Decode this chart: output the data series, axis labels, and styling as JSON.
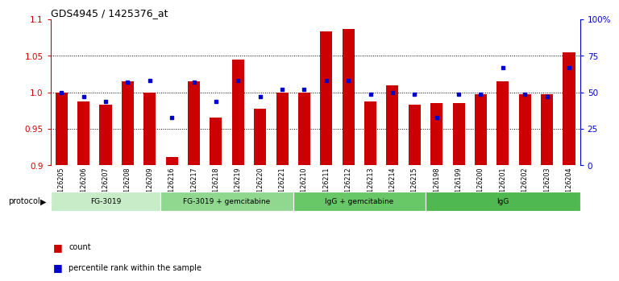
{
  "title": "GDS4945 / 1425376_at",
  "samples": [
    "GSM1126205",
    "GSM1126206",
    "GSM1126207",
    "GSM1126208",
    "GSM1126209",
    "GSM1126216",
    "GSM1126217",
    "GSM1126218",
    "GSM1126219",
    "GSM1126220",
    "GSM1126221",
    "GSM1126210",
    "GSM1126211",
    "GSM1126212",
    "GSM1126213",
    "GSM1126214",
    "GSM1126215",
    "GSM1126198",
    "GSM1126199",
    "GSM1126200",
    "GSM1126201",
    "GSM1126202",
    "GSM1126203",
    "GSM1126204"
  ],
  "red_values": [
    1.0,
    0.988,
    0.983,
    1.015,
    1.0,
    0.912,
    1.015,
    0.965,
    1.045,
    0.978,
    1.0,
    1.0,
    1.083,
    1.087,
    0.988,
    1.01,
    0.983,
    0.985,
    0.985,
    0.998,
    1.015,
    0.998,
    0.998,
    1.055
  ],
  "blue_percentile": [
    50,
    47,
    44,
    57,
    58,
    33,
    57,
    44,
    58,
    47,
    52,
    52,
    58,
    58,
    49,
    50,
    49,
    33,
    49,
    49,
    67,
    49,
    47,
    67
  ],
  "protocols": [
    {
      "label": "FG-3019",
      "start": 0,
      "end": 4,
      "color": "#c8ecc8"
    },
    {
      "label": "FG-3019 + gemcitabine",
      "start": 5,
      "end": 10,
      "color": "#90d890"
    },
    {
      "label": "IgG + gemcitabine",
      "start": 11,
      "end": 16,
      "color": "#68c868"
    },
    {
      "label": "IgG",
      "start": 17,
      "end": 23,
      "color": "#50b850"
    }
  ],
  "ylim": [
    0.9,
    1.1
  ],
  "yticks_left": [
    0.9,
    0.95,
    1.0,
    1.05,
    1.1
  ],
  "yticks_right": [
    0,
    25,
    50,
    75,
    100
  ],
  "right_yticklabels": [
    "0",
    "25",
    "50",
    "75",
    "100%"
  ],
  "bar_color": "#cc0000",
  "dot_color": "#0000cc",
  "bg_color": "#ffffff",
  "left_axis_color": "#cc0000",
  "right_axis_color": "#0000cc"
}
